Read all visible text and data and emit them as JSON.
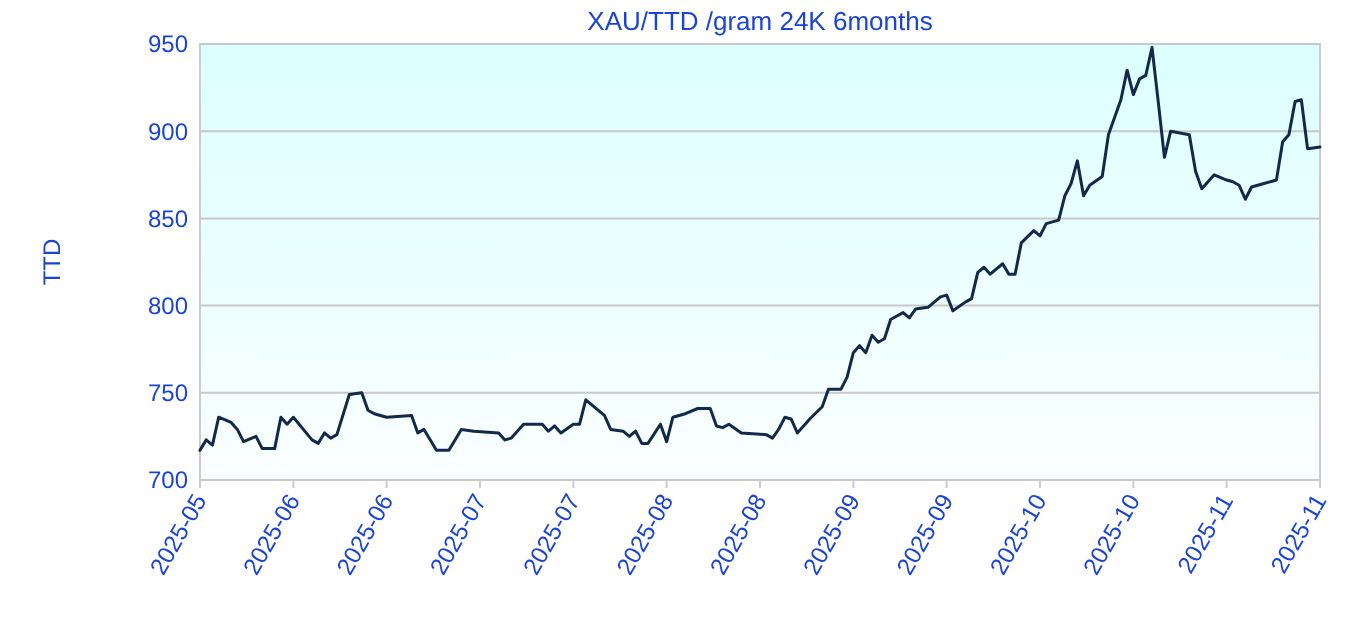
{
  "chart_data": {
    "type": "line",
    "title": "XAU/TTD /gram 24K 6months",
    "ylabel": "TTD",
    "xlim": [
      "2025-05-31",
      "2025-11-27"
    ],
    "xticks": [
      {
        "value": "2025-05-31",
        "label": "2025-05"
      },
      {
        "value": "2025-06-15",
        "label": "2025-06"
      },
      {
        "value": "2025-06-30",
        "label": "2025-06"
      },
      {
        "value": "2025-07-15",
        "label": "2025-07"
      },
      {
        "value": "2025-07-30",
        "label": "2025-07"
      },
      {
        "value": "2025-08-14",
        "label": "2025-08"
      },
      {
        "value": "2025-08-29",
        "label": "2025-08"
      },
      {
        "value": "2025-09-13",
        "label": "2025-09"
      },
      {
        "value": "2025-09-28",
        "label": "2025-09"
      },
      {
        "value": "2025-10-13",
        "label": "2025-10"
      },
      {
        "value": "2025-10-28",
        "label": "2025-10"
      },
      {
        "value": "2025-11-12",
        "label": "2025-11"
      },
      {
        "value": "2025-11-27",
        "label": "2025-11"
      }
    ],
    "ylim": [
      700,
      950
    ],
    "yticks": [
      700,
      750,
      800,
      850,
      900,
      950
    ],
    "grid": "y",
    "line_style": "solid",
    "series": [
      {
        "color": "#13294b",
        "x": [
          "2025-05-31",
          "2025-06-01",
          "2025-06-02",
          "2025-06-03",
          "2025-06-05",
          "2025-06-06",
          "2025-06-07",
          "2025-06-09",
          "2025-06-10",
          "2025-06-12",
          "2025-06-13",
          "2025-06-14",
          "2025-06-15",
          "2025-06-18",
          "2025-06-19",
          "2025-06-20",
          "2025-06-21",
          "2025-06-22",
          "2025-06-24",
          "2025-06-26",
          "2025-06-27",
          "2025-06-28",
          "2025-06-30",
          "2025-07-04",
          "2025-07-05",
          "2025-07-06",
          "2025-07-08",
          "2025-07-10",
          "2025-07-12",
          "2025-07-14",
          "2025-07-18",
          "2025-07-19",
          "2025-07-20",
          "2025-07-22",
          "2025-07-25",
          "2025-07-26",
          "2025-07-27",
          "2025-07-28",
          "2025-07-30",
          "2025-07-31",
          "2025-08-01",
          "2025-08-04",
          "2025-08-05",
          "2025-08-07",
          "2025-08-08",
          "2025-08-09",
          "2025-08-10",
          "2025-08-11",
          "2025-08-13",
          "2025-08-14",
          "2025-08-15",
          "2025-08-17",
          "2025-08-19",
          "2025-08-21",
          "2025-08-22",
          "2025-08-23",
          "2025-08-24",
          "2025-08-26",
          "2025-08-30",
          "2025-08-31",
          "2025-09-01",
          "2025-09-02",
          "2025-09-03",
          "2025-09-04",
          "2025-09-06",
          "2025-09-08",
          "2025-09-09",
          "2025-09-11",
          "2025-09-12",
          "2025-09-13",
          "2025-09-14",
          "2025-09-15",
          "2025-09-16",
          "2025-09-17",
          "2025-09-18",
          "2025-09-19",
          "2025-09-20",
          "2025-09-21",
          "2025-09-22",
          "2025-09-23",
          "2025-09-25",
          "2025-09-27",
          "2025-09-28",
          "2025-09-29",
          "2025-10-01",
          "2025-10-02",
          "2025-10-03",
          "2025-10-04",
          "2025-10-05",
          "2025-10-07",
          "2025-10-08",
          "2025-10-09",
          "2025-10-10",
          "2025-10-12",
          "2025-10-13",
          "2025-10-14",
          "2025-10-16",
          "2025-10-17",
          "2025-10-18",
          "2025-10-19",
          "2025-10-20",
          "2025-10-21",
          "2025-10-23",
          "2025-10-24",
          "2025-10-26",
          "2025-10-27",
          "2025-10-28",
          "2025-10-29",
          "2025-10-30",
          "2025-10-31",
          "2025-11-01",
          "2025-11-02",
          "2025-11-03",
          "2025-11-06",
          "2025-11-07",
          "2025-11-08",
          "2025-11-10",
          "2025-11-12",
          "2025-11-13",
          "2025-11-14",
          "2025-11-15",
          "2025-11-16",
          "2025-11-18",
          "2025-11-20",
          "2025-11-21",
          "2025-11-22",
          "2025-11-23",
          "2025-11-24",
          "2025-11-25",
          "2025-11-27"
        ],
        "values": [
          717,
          723,
          720,
          736,
          733,
          729,
          722,
          725,
          718,
          718,
          736,
          732,
          736,
          723,
          721,
          727,
          724,
          726,
          749,
          750,
          740,
          738,
          736,
          737,
          727,
          729,
          717,
          717,
          729,
          728,
          727,
          723,
          724,
          732,
          732,
          728,
          731,
          727,
          732,
          732,
          746,
          737,
          729,
          728,
          725,
          728,
          721,
          721,
          732,
          722,
          736,
          738,
          741,
          741,
          731,
          730,
          732,
          727,
          726,
          724,
          729,
          736,
          735,
          727,
          735,
          742,
          752,
          752,
          759,
          773,
          777,
          773,
          783,
          779,
          781,
          792,
          794,
          796,
          793,
          798,
          799,
          805,
          806,
          797,
          802,
          804,
          819,
          822,
          818,
          824,
          818,
          818,
          836,
          843,
          840,
          847,
          849,
          863,
          870,
          883,
          863,
          869,
          874,
          898,
          918,
          935,
          921,
          930,
          932,
          948,
          917,
          885,
          900,
          898,
          877,
          867,
          875,
          872,
          871,
          869,
          861,
          868,
          870,
          872,
          894,
          898,
          917,
          918,
          890,
          891
        ]
      }
    ]
  }
}
